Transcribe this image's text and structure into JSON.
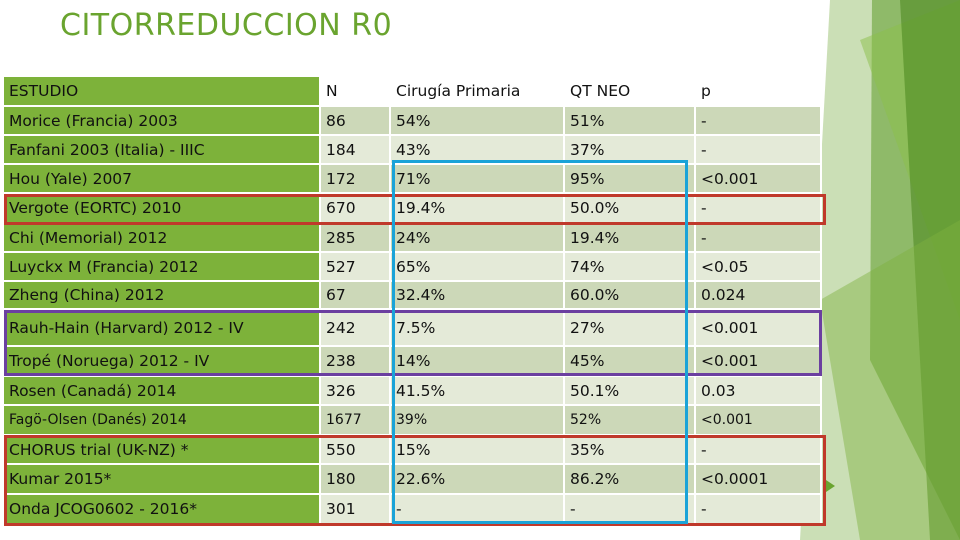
{
  "title": "CITORREDUCCION R0",
  "colors": {
    "title": "#6aa42f",
    "first_column": "#7db23a",
    "row_dark": "#ccd8b8",
    "row_light": "#e4ead8",
    "highlight_red": "#c0392b",
    "highlight_purple": "#6b3fa0",
    "highlight_blue": "#1aa3d8",
    "decor_green": "#6aa42f"
  },
  "table": {
    "headers": [
      "ESTUDIO",
      "N",
      "Cirugía Primaria",
      "QT NEO",
      "p"
    ],
    "rows": [
      [
        "Morice (Francia) 2003",
        "86",
        "54%",
        "51%",
        "-"
      ],
      [
        "Fanfani 2003 (Italia) - IIIC",
        "184",
        "43%",
        "37%",
        "-"
      ],
      [
        "Hou (Yale) 2007",
        "172",
        "71%",
        "95%",
        "<0.001"
      ],
      [
        "Vergote (EORTC) 2010",
        "670",
        "19.4%",
        "50.0%",
        "-"
      ],
      [
        "Chi (Memorial) 2012",
        "285",
        "24%",
        "19.4%",
        "-"
      ],
      [
        "Luyckx M (Francia) 2012",
        "527",
        "65%",
        "74%",
        "<0.05"
      ],
      [
        "Zheng (China) 2012",
        "67",
        "32.4%",
        "60.0%",
        "0.024"
      ],
      [
        "Rauh-Hain (Harvard) 2012 - IV",
        "242",
        "7.5%",
        "27%",
        "<0.001"
      ],
      [
        "Tropé (Noruega) 2012 - IV",
        "238",
        "14%",
        "45%",
        "<0.001"
      ],
      [
        "Rosen (Canadá) 2014",
        "326",
        "41.5%",
        "50.1%",
        "0.03"
      ],
      [
        "Fagö-Olsen (Danés) 2014",
        "1677",
        "39%",
        "52%",
        "<0.001"
      ],
      [
        "CHORUS trial (UK-NZ) *",
        "550",
        "15%",
        "35%",
        "-"
      ],
      [
        "Kumar 2015*",
        "180",
        "22.6%",
        "86.2%",
        "<0.0001"
      ],
      [
        "Onda JCOG0602 - 2016*",
        "301",
        "-",
        "-",
        "-"
      ]
    ]
  }
}
